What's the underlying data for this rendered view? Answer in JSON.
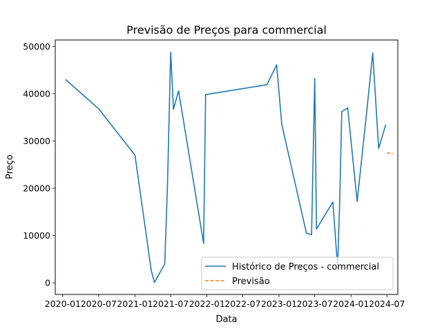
{
  "chart_data": {
    "type": "line",
    "title": "Previsão de Preços para commercial",
    "xlabel": "Data",
    "ylabel": "Preço",
    "xlim": [
      "2019-11-24",
      "2024-08-25"
    ],
    "ylim": [
      -2450,
      51350
    ],
    "x_ticks": [
      "2020-01",
      "2020-07",
      "2021-01",
      "2021-07",
      "2022-01",
      "2022-07",
      "2023-01",
      "2023-07",
      "2024-01",
      "2024-07"
    ],
    "y_ticks": [
      0,
      10000,
      20000,
      30000,
      40000,
      50000
    ],
    "y_tick_labels": [
      "0",
      "10000",
      "20000",
      "30000",
      "40000",
      "50000"
    ],
    "grid": false,
    "legend_position": "lower-right",
    "series": [
      {
        "name": "Histórico de Preços - commercial",
        "color": "#1f77b4",
        "style": "solid",
        "points": [
          [
            "2020-01-15",
            43000
          ],
          [
            "2020-07-01",
            36800
          ],
          [
            "2021-01-01",
            27000
          ],
          [
            "2021-03-25",
            2500
          ],
          [
            "2021-04-10",
            100
          ],
          [
            "2021-06-01",
            4000
          ],
          [
            "2021-06-15",
            21000
          ],
          [
            "2021-07-01",
            48800
          ],
          [
            "2021-07-15",
            36700
          ],
          [
            "2021-08-10",
            40600
          ],
          [
            "2021-12-15",
            8300
          ],
          [
            "2021-12-25",
            39800
          ],
          [
            "2022-11-01",
            41900
          ],
          [
            "2022-12-20",
            46100
          ],
          [
            "2023-01-15",
            33500
          ],
          [
            "2023-05-20",
            10500
          ],
          [
            "2023-06-15",
            10200
          ],
          [
            "2023-07-01",
            43200
          ],
          [
            "2023-07-10",
            11400
          ],
          [
            "2023-10-01",
            17100
          ],
          [
            "2023-10-25",
            3200
          ],
          [
            "2023-11-05",
            18000
          ],
          [
            "2023-11-15",
            36200
          ],
          [
            "2023-12-15",
            37000
          ],
          [
            "2024-02-01",
            17200
          ],
          [
            "2024-03-20",
            36000
          ],
          [
            "2024-04-20",
            48600
          ],
          [
            "2024-05-20",
            28400
          ],
          [
            "2024-06-25",
            33500
          ]
        ]
      },
      {
        "name": "Previsão",
        "color": "#ff7f0e",
        "style": "dashed",
        "points": [
          [
            "2024-07-01",
            27500
          ],
          [
            "2024-07-15",
            27400
          ],
          [
            "2024-07-31",
            27300
          ]
        ]
      }
    ]
  }
}
